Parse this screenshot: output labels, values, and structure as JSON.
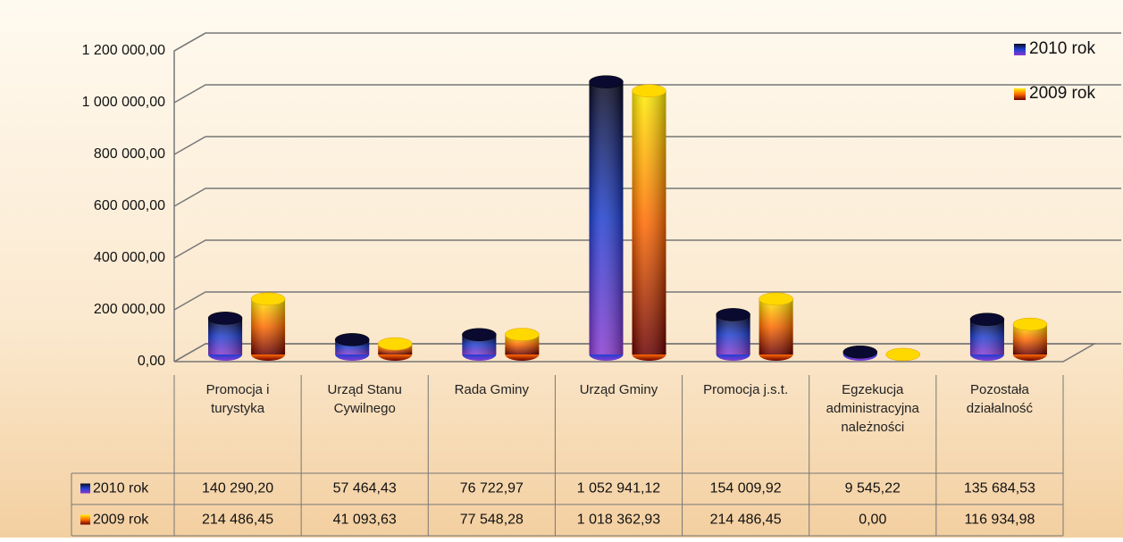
{
  "chart_data": {
    "type": "bar",
    "categories": [
      "Promocja i turystyka",
      "Urząd Stanu Cywilnego",
      "Rada Gminy",
      "Urząd Gminy",
      "Promocja j.s.t.",
      "Egzekucja administracyjna należności",
      "Pozostała działalność"
    ],
    "series": [
      {
        "name": "2010 rok",
        "color": "#1f3fbf",
        "values": [
          140290.2,
          57464.43,
          76722.97,
          1052941.12,
          154009.92,
          9545.22,
          135684.53
        ],
        "value_labels": [
          "140 290,20",
          "57 464,43",
          "76 722,97",
          "1 052 941,12",
          "154 009,92",
          "9 545,22",
          "135 684,53"
        ]
      },
      {
        "name": "2009 rok",
        "color": "#ff8c00",
        "values": [
          214486.45,
          41093.63,
          77548.28,
          1018362.93,
          214486.45,
          0.0,
          116934.98
        ],
        "value_labels": [
          "214 486,45",
          "41 093,63",
          "77 548,28",
          "1 018 362,93",
          "214 486,45",
          "0,00",
          "116 934,98"
        ]
      }
    ],
    "ylim": [
      0,
      1200000
    ],
    "yticks": [
      {
        "value": 0,
        "label": "0,00"
      },
      {
        "value": 200000,
        "label": "200 000,00"
      },
      {
        "value": 400000,
        "label": "400 000,00"
      },
      {
        "value": 600000,
        "label": "600 000,00"
      },
      {
        "value": 800000,
        "label": "800 000,00"
      },
      {
        "value": 1000000,
        "label": "1 000 000,00"
      },
      {
        "value": 1200000,
        "label": "1 200 000,00"
      }
    ],
    "grid": true,
    "legend": "top-right"
  }
}
